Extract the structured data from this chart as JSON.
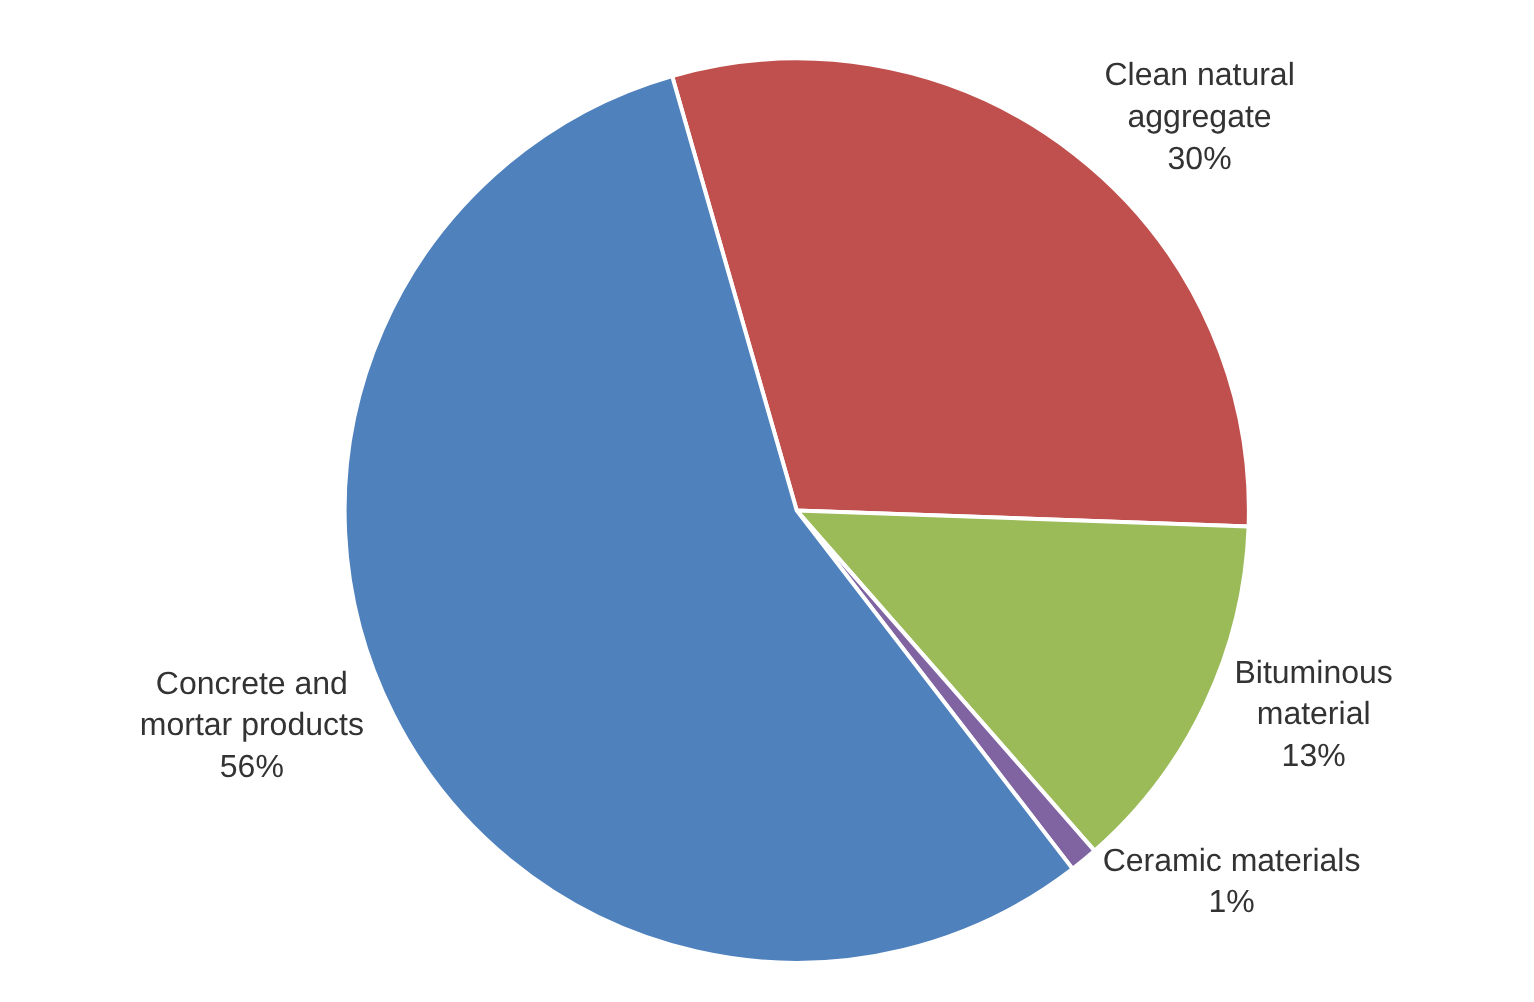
{
  "chart_data": {
    "type": "pie",
    "categories": [
      "Clean natural aggregate",
      "Bituminous material",
      "Ceramic materials",
      "Concrete and mortar products"
    ],
    "values": [
      30,
      13,
      1,
      56
    ],
    "value_labels": [
      "30%",
      "13%",
      "1%",
      "56%"
    ],
    "colors": [
      "#c0504d",
      "#9bbb59",
      "#8064a2",
      "#4f81bd"
    ]
  }
}
